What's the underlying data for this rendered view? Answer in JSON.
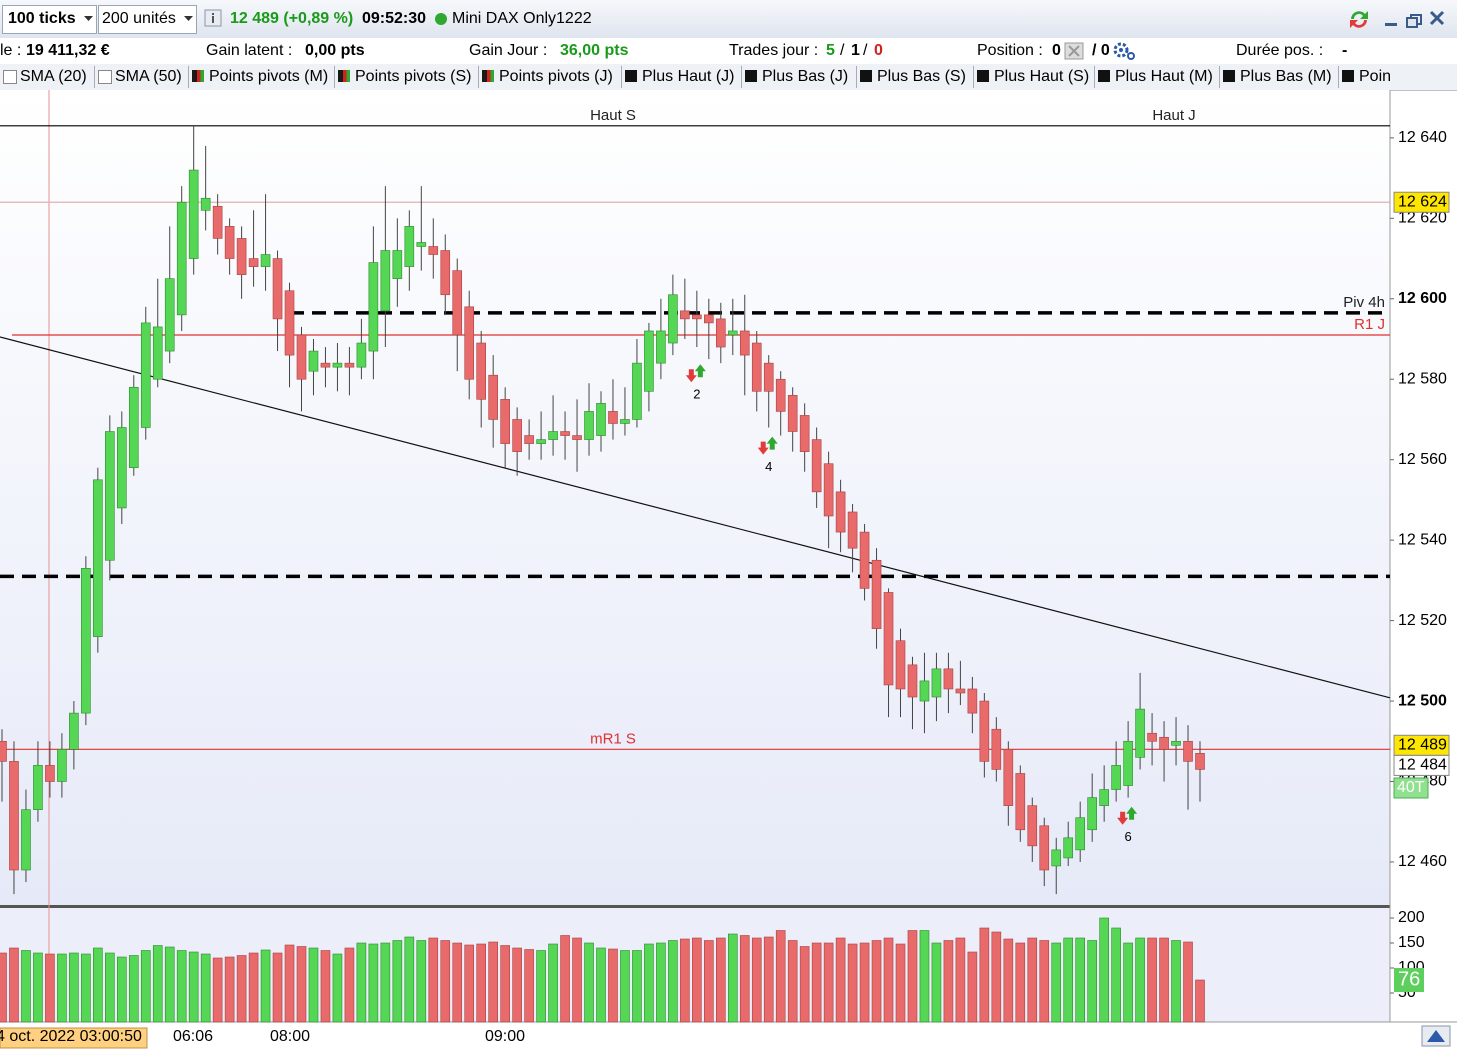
{
  "toolbar": {
    "ticks": "100 ticks",
    "units": "200 unités",
    "price": "12 489 (+0,89 %)",
    "time": "09:52:30",
    "instrument": "Mini DAX Only1222"
  },
  "status": {
    "balance_label": "le :",
    "balance": "19 411,32 €",
    "gain_latent_label": "Gain latent :",
    "gain_latent": "0,00 pts",
    "gain_jour_label": "Gain Jour :",
    "gain_jour": "36,00 pts",
    "trades_label": "Trades jour :",
    "trades": [
      "5",
      "/",
      "1",
      "/",
      "0"
    ],
    "position_label": "Position :",
    "position": [
      "0",
      "/ 0"
    ],
    "duree_label": "Durée pos. :",
    "duree": "-"
  },
  "indicators": [
    "SMA (20)",
    "SMA (50)",
    "Points pivots (M)",
    "Points pivots (S)",
    "Points pivots (J)",
    "Plus Haut (J)",
    "Plus Bas (J)",
    "Plus Bas (S)",
    "Plus Haut (S)",
    "Plus Haut (M)",
    "Plus Bas (M)",
    "Poin"
  ],
  "chart_data": {
    "type": "candlestick",
    "open": [
      12490,
      12485,
      12458,
      12473,
      12484,
      12480,
      12488,
      12497,
      12516,
      12535,
      12548,
      12558,
      12568,
      12580,
      12587,
      12596,
      12610,
      12622,
      12623,
      12618,
      12615,
      12610,
      12608,
      12610,
      12602,
      12591,
      12582,
      12584,
      12583,
      12584,
      12583,
      12587,
      12597,
      12605,
      12608,
      12613,
      12613,
      12612,
      12607,
      12598,
      12589,
      12581,
      12575,
      12570,
      12566,
      12564,
      12565,
      12567,
      12566,
      12565,
      12566,
      12572,
      12569,
      12570,
      12577,
      12584,
      12589,
      12597,
      12596,
      12596,
      12595,
      12591,
      12592,
      12589,
      12584,
      12580,
      12576,
      12571,
      12565,
      12559,
      12552,
      12547,
      12542,
      12535,
      12527,
      12515,
      12509,
      12500,
      12501,
      12508,
      12503,
      12503,
      12500,
      12493,
      12488,
      12482,
      12474,
      12469,
      12459,
      12461,
      12463,
      12468,
      12474,
      12478,
      12479,
      12486,
      12492,
      12491,
      12489,
      12490,
      12487
    ],
    "high": [
      12493,
      12490,
      12478,
      12490,
      12490,
      12492,
      12500,
      12536,
      12558,
      12571,
      12572,
      12581,
      12598,
      12605,
      12618,
      12628,
      12643,
      12638,
      12626,
      12620,
      12618,
      12622,
      12626,
      12612,
      12604,
      12593,
      12590,
      12588,
      12589,
      12588,
      12595,
      12618,
      12628,
      12620,
      12622,
      12628,
      12620,
      12616,
      12610,
      12602,
      12592,
      12586,
      12578,
      12573,
      12570,
      12572,
      12576,
      12572,
      12575,
      12579,
      12577,
      12580,
      12578,
      12590,
      12594,
      12600,
      12606,
      12605,
      12602,
      12600,
      12599,
      12600,
      12601,
      12592,
      12586,
      12582,
      12578,
      12574,
      12568,
      12562,
      12555,
      12549,
      12544,
      12538,
      12528,
      12518,
      12511,
      12512,
      12512,
      12512,
      12510,
      12506,
      12502,
      12496,
      12490,
      12484,
      12476,
      12471,
      12466,
      12470,
      12475,
      12482,
      12484,
      12490,
      12495,
      12507,
      12497,
      12495,
      12496,
      12494,
      12490
    ],
    "low": [
      12475,
      12452,
      12455,
      12470,
      12476,
      12476,
      12483,
      12494,
      12512,
      12530,
      12544,
      12556,
      12565,
      12578,
      12584,
      12592,
      12606,
      12617,
      12611,
      12606,
      12600,
      12603,
      12602,
      12587,
      12578,
      12572,
      12576,
      12578,
      12577,
      12576,
      12580,
      12580,
      12588,
      12598,
      12602,
      12607,
      12605,
      12596,
      12582,
      12575,
      12568,
      12563,
      12558,
      12556,
      12560,
      12560,
      12561,
      12560,
      12557,
      12561,
      12562,
      12565,
      12566,
      12568,
      12572,
      12580,
      12586,
      12590,
      12588,
      12585,
      12584,
      12586,
      12576,
      12572,
      12568,
      12566,
      12562,
      12557,
      12548,
      12538,
      12537,
      12532,
      12525,
      12513,
      12496,
      12496,
      12493,
      12492,
      12495,
      12497,
      12499,
      12492,
      12481,
      12480,
      12469,
      12465,
      12460,
      12454,
      12452,
      12459,
      12460,
      12465,
      12470,
      12475,
      12476,
      12483,
      12484,
      12480,
      12484,
      12473,
      12475
    ],
    "close": [
      12485,
      12458,
      12473,
      12484,
      12480,
      12488,
      12497,
      12533,
      12555,
      12567,
      12568,
      12578,
      12594,
      12593,
      12605,
      12624,
      12632,
      12625,
      12615,
      12610,
      12606,
      12608,
      12611,
      12595,
      12586,
      12580,
      12587,
      12583,
      12584,
      12583,
      12589,
      12609,
      12612,
      12612,
      12618,
      12614,
      12611,
      12601,
      12591,
      12580,
      12575,
      12570,
      12564,
      12562,
      12564,
      12565,
      12567,
      12566,
      12565,
      12572,
      12574,
      12569,
      12570,
      12584,
      12592,
      12592,
      12601,
      12595,
      12595,
      12594,
      12588,
      12592,
      12586,
      12577,
      12577,
      12572,
      12567,
      12562,
      12552,
      12546,
      12542,
      12538,
      12528,
      12518,
      12504,
      12503,
      12501,
      12505,
      12508,
      12503,
      12502,
      12497,
      12485,
      12483,
      12474,
      12468,
      12464,
      12458,
      12463,
      12466,
      12471,
      12476,
      12478,
      12484,
      12490,
      12498,
      12490,
      12488,
      12490,
      12485,
      12483
    ],
    "volume": [
      130,
      140,
      135,
      130,
      128,
      128,
      130,
      128,
      140,
      130,
      122,
      125,
      135,
      145,
      142,
      135,
      132,
      128,
      120,
      122,
      125,
      130,
      136,
      130,
      146,
      143,
      140,
      135,
      128,
      140,
      150,
      148,
      150,
      155,
      162,
      155,
      160,
      155,
      150,
      146,
      148,
      152,
      145,
      140,
      137,
      135,
      148,
      165,
      160,
      150,
      140,
      138,
      135,
      135,
      148,
      150,
      155,
      158,
      160,
      155,
      160,
      168,
      165,
      160,
      162,
      175,
      155,
      143,
      150,
      150,
      160,
      148,
      150,
      155,
      160,
      148,
      175,
      175,
      150,
      155,
      160,
      132,
      180,
      172,
      158,
      150,
      160,
      155,
      150,
      160,
      160,
      155,
      200,
      180,
      150,
      160,
      160,
      160,
      155,
      152,
      76
    ],
    "up_color": "#55d655",
    "down_color": "#e86a6a",
    "ylim": [
      12449.3,
      12651.9
    ],
    "yticks": [
      {
        "value": 12640,
        "label": "12 640"
      },
      {
        "value": 12620,
        "label": "12 620"
      },
      {
        "value": 12600,
        "label": "12 600"
      },
      {
        "value": 12580,
        "label": "12 580"
      },
      {
        "value": 12560,
        "label": "12 560"
      },
      {
        "value": 12540,
        "label": "12 540"
      },
      {
        "value": 12520,
        "label": "12 520"
      },
      {
        "value": 12500,
        "label": "12 500"
      },
      {
        "value": 12480,
        "label": "12 480"
      },
      {
        "value": 12460,
        "label": "12 460"
      }
    ],
    "volume_ylim": [
      0,
      220
    ],
    "volume_ticks": [
      200,
      150,
      100,
      50
    ],
    "x_labels": [
      "4 oct. 2022 03:00:50",
      "06:06",
      "08:00",
      "09:00"
    ],
    "levels": [
      {
        "value": 12643,
        "color": "#000000",
        "style": "solid",
        "labels": [
          "Haut S",
          "Haut J"
        ]
      },
      {
        "value": 12624,
        "color": "#e0b0b0",
        "style": "solid",
        "labels": []
      },
      {
        "value": 12596.5,
        "color": "#000000",
        "style": "dashed",
        "labels": [
          "Piv 4h"
        ]
      },
      {
        "value": 12591,
        "color": "#e03030",
        "style": "solid",
        "labels": [
          "R1 J"
        ]
      },
      {
        "value": 12531,
        "color": "#000000",
        "style": "dashed",
        "labels": []
      },
      {
        "value": 12488,
        "color": "#e03030",
        "style": "solid",
        "labels": [
          "mR1 S"
        ]
      }
    ],
    "trendline": {
      "start": 12590.5,
      "end": 12500.8
    },
    "signals": [
      {
        "index": 58,
        "value": 12581,
        "label": "2"
      },
      {
        "index": 64,
        "value": 12563,
        "label": "4"
      },
      {
        "index": 94,
        "value": 12471,
        "label": "6"
      }
    ],
    "price_badges": [
      {
        "value": 12624,
        "label": "12 624",
        "color": "#ffe600"
      },
      {
        "value": 12489,
        "label": "12 489",
        "color": "#ffe600"
      },
      {
        "value": 12484,
        "label": "12 484",
        "color": "#ffffff"
      }
    ],
    "tick_badge": "40T"
  }
}
